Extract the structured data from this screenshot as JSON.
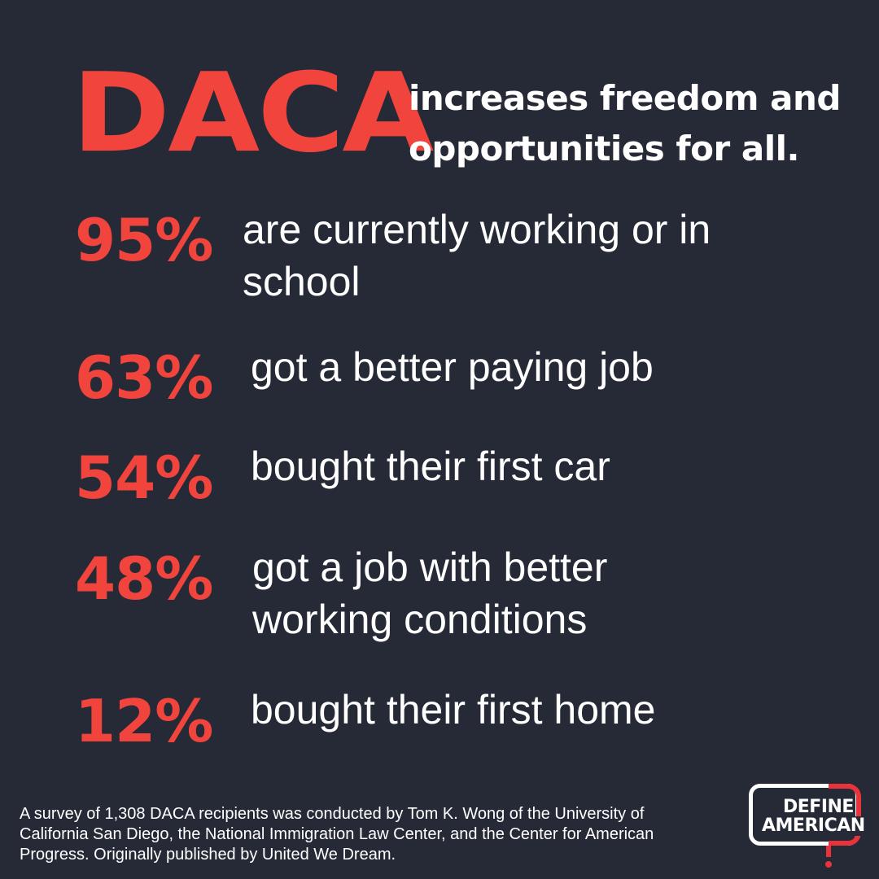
{
  "headline": {
    "word": "DACA",
    "subtitle": "increases freedom and opportunities for all."
  },
  "stats": [
    {
      "value": "95%",
      "label": "are currently working or in school"
    },
    {
      "value": "63%",
      "label": "got a better paying job"
    },
    {
      "value": "54%",
      "label": "bought their first car"
    },
    {
      "value": "48%",
      "label": "got a job with better working conditions"
    },
    {
      "value": "12%",
      "label": "bought their first home"
    }
  ],
  "footnote": "A survey of 1,308 DACA recipients was conducted by Tom K. Wong of the University of California San Diego, the National Immigration Law Center, and the Center for American Progress. Originally published by United We Dream.",
  "logo": {
    "line1": "DEFINE",
    "line2": "AMERICAN"
  },
  "colors": {
    "background": "#262a36",
    "accent": "#f0443d",
    "text": "#ffffff"
  }
}
